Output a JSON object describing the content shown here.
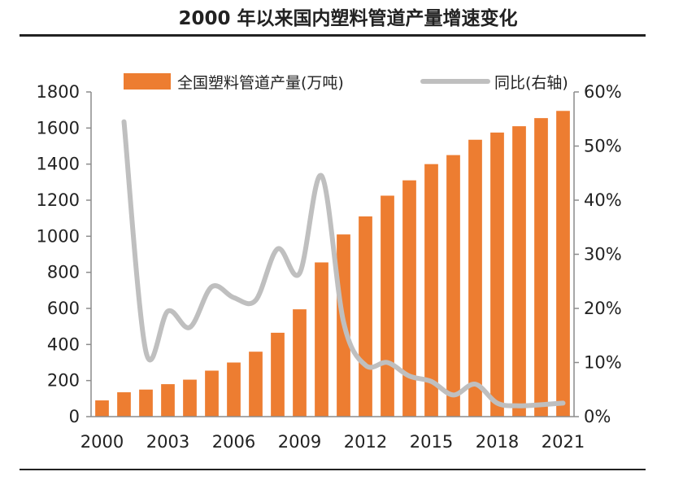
{
  "chart_data": {
    "type": "bar+line",
    "title": "2000 年以来国内塑料管道产量增速变化",
    "x": [
      2000,
      2001,
      2002,
      2003,
      2004,
      2005,
      2006,
      2007,
      2008,
      2009,
      2010,
      2011,
      2012,
      2013,
      2014,
      2015,
      2016,
      2017,
      2018,
      2019,
      2020,
      2021
    ],
    "x_tick_labels": [
      "2000",
      "2003",
      "2006",
      "2009",
      "2012",
      "2015",
      "2018",
      "2021"
    ],
    "series": [
      {
        "name": "全国塑料管道产量(万吨)",
        "type": "bar",
        "axis": "left",
        "color": "#ED7D31",
        "values": [
          90,
          135,
          150,
          180,
          205,
          255,
          300,
          360,
          465,
          595,
          855,
          1010,
          1110,
          1225,
          1310,
          1400,
          1450,
          1535,
          1575,
          1610,
          1655,
          1695
        ]
      },
      {
        "name": "同比(右轴)",
        "type": "line",
        "axis": "right",
        "color": "#BFBFBF",
        "values": [
          null,
          0.545,
          0.12,
          0.195,
          0.165,
          0.24,
          0.22,
          0.215,
          0.31,
          0.265,
          0.445,
          0.175,
          0.095,
          0.1,
          0.075,
          0.065,
          0.04,
          0.06,
          0.025,
          0.02,
          0.022,
          0.025
        ]
      }
    ],
    "y_left": {
      "min": 0,
      "max": 1800,
      "ticks": [
        "0",
        "200",
        "400",
        "600",
        "800",
        "1000",
        "1200",
        "1400",
        "1600",
        "1800"
      ]
    },
    "y_right": {
      "min": 0,
      "max": 0.6,
      "ticks": [
        "0%",
        "10%",
        "20%",
        "30%",
        "40%",
        "50%",
        "60%"
      ]
    },
    "legend_position": "top-center",
    "grid": false
  }
}
